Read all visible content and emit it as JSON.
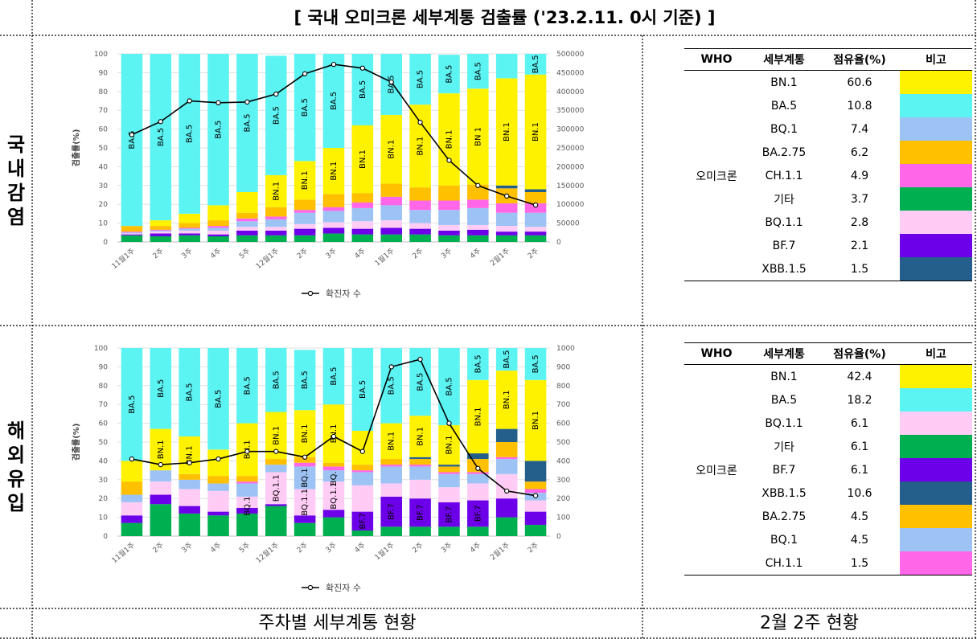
{
  "title": "[ 국내 오미크론 세부계통 검출률 ('23.2.11. 0시 기준) ]",
  "row_labels": {
    "domestic": "국내감염",
    "overseas": "해외유입"
  },
  "footer": {
    "left": "주차별 세부계통 현황",
    "right": "2월 2주 현황"
  },
  "colors": {
    "BN.1": "#FFF200",
    "BA.5": "#5CF3F3",
    "BQ.1": "#9DC3F5",
    "BA.2.75": "#FFC000",
    "CH.1.1": "#FF66E8",
    "기타": "#00B050",
    "BQ.1.1": "#FFCCF5",
    "BF.7": "#6C00E8",
    "XBB.1.5": "#245F8C",
    "line": "#000000"
  },
  "chart_data": [
    {
      "type": "bar",
      "name": "domestic",
      "ylabel": "검출률(%)",
      "ylim": [
        0,
        100
      ],
      "y2lim": [
        0,
        500000
      ],
      "yticks": [
        "0",
        "10",
        "20",
        "30",
        "40",
        "50",
        "60",
        "70",
        "80",
        "90",
        "100"
      ],
      "y2ticks": [
        "0",
        "50000",
        "100000",
        "150000",
        "200000",
        "250000",
        "300000",
        "350000",
        "400000",
        "450000",
        "500000"
      ],
      "categories": [
        "11월1주",
        "2주",
        "3주",
        "4주",
        "5주",
        "12월1주",
        "2주",
        "3주",
        "4주",
        "1월1주",
        "2주",
        "3주",
        "4주",
        "2월1주",
        "2주"
      ],
      "stack_order": [
        "기타",
        "BF.7",
        "BQ.1.1",
        "BQ.1",
        "CH.1.1",
        "BA.2.75",
        "XBB.1.5",
        "BN.1",
        "BA.5"
      ],
      "series": [
        {
          "name": "기타",
          "values": [
            3.5,
            3,
            3.5,
            3,
            3.5,
            3.5,
            3.5,
            4.5,
            4,
            4,
            4,
            3.5,
            3.5,
            3.5,
            3.5
          ]
        },
        {
          "name": "BF.7",
          "values": [
            0.5,
            1.5,
            1,
            1,
            2.5,
            2.5,
            3.5,
            3,
            3,
            3.5,
            3,
            2.5,
            3,
            2,
            2
          ]
        },
        {
          "name": "BQ.1.1",
          "values": [
            0.5,
            1,
            1.5,
            2,
            2,
            2,
            2.5,
            3,
            4,
            4,
            3,
            3,
            2.5,
            3,
            2.5
          ]
        },
        {
          "name": "BQ.1",
          "values": [
            0.5,
            0.5,
            1,
            1.5,
            3,
            4,
            6,
            6,
            7,
            8,
            7,
            8,
            9,
            7,
            7.5
          ]
        },
        {
          "name": "CH.1.1",
          "values": [
            0.5,
            0.5,
            0.5,
            1,
            1.5,
            1.5,
            1.5,
            2,
            3,
            4.5,
            5,
            5,
            4.5,
            5,
            5
          ]
        },
        {
          "name": "BA.2.75",
          "values": [
            3,
            2,
            2.5,
            3,
            3,
            5,
            5.5,
            7,
            5,
            7,
            7,
            8,
            8,
            8,
            6
          ]
        },
        {
          "name": "XBB.1.5",
          "values": [
            0,
            0,
            0,
            0,
            0,
            0,
            0,
            0,
            0,
            0,
            0,
            0,
            0,
            1.5,
            1.5
          ]
        },
        {
          "name": "BN.1",
          "values": [
            0,
            3,
            5,
            8,
            11,
            17,
            20.5,
            24.5,
            36,
            36.5,
            44,
            49,
            51,
            57,
            61
          ]
        },
        {
          "name": "BA.5",
          "values": [
            91.5,
            88.5,
            85,
            80.5,
            73.5,
            63.5,
            57,
            50,
            38,
            32.5,
            27,
            20.5,
            18.5,
            13,
            11
          ]
        },
        {
          "name": "확진자 수",
          "type": "line",
          "values": [
            285000,
            320000,
            375000,
            370000,
            372000,
            393000,
            447000,
            472000,
            462000,
            425000,
            318000,
            217000,
            150000,
            122000,
            98000
          ]
        }
      ],
      "bar_labels": {
        "BA.5": [
          "BA.5",
          "BA.5",
          "BA.5",
          "BA.5",
          "BA.5",
          "BA.5",
          "BA.5",
          "BA.5",
          "BA.5",
          "BA.5",
          "BA.5",
          "BA.5",
          "BA.5",
          "",
          "BA.5"
        ],
        "BN.1": [
          "",
          "",
          "",
          "",
          "",
          "BN.1",
          "BN.1",
          "BN.1",
          "BN.1",
          "BN.1",
          "BN.1",
          "BN.1",
          "BN 1",
          "BN.1",
          "BN.1"
        ]
      },
      "legend": "—○— 확진자 수",
      "legend_position": "bottom"
    },
    {
      "type": "bar",
      "name": "overseas",
      "ylabel": "검출률(%)",
      "ylim": [
        0,
        100
      ],
      "y2lim": [
        0,
        1000
      ],
      "yticks": [
        "0",
        "10",
        "20",
        "30",
        "40",
        "50",
        "60",
        "70",
        "80",
        "90",
        "100"
      ],
      "y2ticks": [
        "0",
        "100",
        "200",
        "300",
        "400",
        "500",
        "600",
        "700",
        "800",
        "900",
        "1000"
      ],
      "categories": [
        "11월1주",
        "2주",
        "3주",
        "4주",
        "5주",
        "12월1주",
        "2주",
        "3주",
        "4주",
        "1월1주",
        "2주",
        "3주",
        "4주",
        "2월1주",
        "2주"
      ],
      "stack_order": [
        "기타",
        "BF.7",
        "BQ.1.1",
        "BQ.1",
        "CH.1.1",
        "BA.2.75",
        "XBB.1.5",
        "BN.1",
        "BA.5"
      ],
      "series": [
        {
          "name": "기타",
          "values": [
            7,
            17,
            12,
            11,
            12,
            16,
            7,
            10,
            3,
            5,
            5,
            5,
            5,
            10,
            6
          ]
        },
        {
          "name": "BF.7",
          "values": [
            4,
            5,
            4,
            2,
            3,
            1,
            4,
            4,
            10,
            16,
            15,
            13,
            14,
            10,
            7
          ]
        },
        {
          "name": "BQ.1.1",
          "values": [
            7,
            7,
            9,
            11,
            6,
            17,
            14,
            15,
            14,
            7,
            10,
            8,
            9,
            13,
            6
          ]
        },
        {
          "name": "BQ.1",
          "values": [
            4,
            6,
            5,
            4,
            7,
            4,
            12,
            6,
            7,
            9,
            7,
            7,
            5,
            8,
            4
          ]
        },
        {
          "name": "CH.1.1",
          "values": [
            0,
            0,
            0,
            0,
            1,
            0,
            2,
            2,
            1,
            1,
            1,
            1,
            1,
            1,
            2
          ]
        },
        {
          "name": "BA.2.75",
          "values": [
            7,
            0,
            3,
            4,
            3,
            3,
            3,
            2,
            3,
            3,
            3,
            3,
            7,
            8,
            4
          ]
        },
        {
          "name": "XBB.1.5",
          "values": [
            0,
            0,
            0,
            0,
            0,
            0,
            0,
            0,
            0,
            0,
            1,
            1,
            3,
            7,
            11
          ]
        },
        {
          "name": "BN.1",
          "values": [
            11,
            22,
            20,
            14,
            28,
            25,
            25,
            31,
            18,
            19,
            22,
            21,
            39,
            31,
            43
          ]
        },
        {
          "name": "BA.5",
          "values": [
            60,
            43,
            47,
            54,
            40,
            34,
            32,
            30,
            44,
            40,
            36,
            41,
            17,
            12,
            17
          ]
        },
        {
          "name": "확진자 수",
          "type": "line",
          "values": [
            410,
            380,
            390,
            410,
            450,
            450,
            420,
            530,
            450,
            900,
            940,
            600,
            360,
            240,
            215
          ]
        }
      ],
      "bar_labels": {
        "BA.5": [
          "BA.5",
          "BA.5",
          "BA.5",
          "BA.5",
          "BA.5",
          "BA.5",
          "BA.5",
          "BA.5",
          "BA.5",
          "BA.5",
          "BA.5",
          "BA.5",
          "BA.5",
          "BA.5",
          "BA.5"
        ],
        "BN.1": [
          "",
          "BN.1",
          "BN.1",
          "",
          "BN.1",
          "BN.1",
          "BN.1",
          "BN.1",
          "",
          "BN.1",
          "BN.1",
          "BN.1",
          "BN.1",
          "BN.1",
          "BN.1"
        ],
        "BQ.1.1": [
          "",
          "",
          "",
          "",
          "BQ.1.1",
          "BQ.1.1",
          "BQ.1.1",
          "BQ.1.1",
          "",
          "",
          "",
          "",
          "",
          "",
          ""
        ],
        "BQ.1": [
          "",
          "",
          "",
          "",
          "",
          "",
          "BQ.1",
          "BQ.1",
          "",
          "",
          "",
          "",
          "",
          "",
          ""
        ],
        "BF.7": [
          "",
          "",
          "",
          "",
          "",
          "",
          "",
          "",
          "BF.7",
          "BF.7",
          "BF.7",
          "BF.7",
          "BF.7",
          "",
          ""
        ]
      },
      "legend": "—○— 확진자 수",
      "legend_position": "bottom"
    }
  ],
  "tables": {
    "domestic": {
      "headers": [
        "WHO",
        "세부계통",
        "점유율(%)",
        "비고"
      ],
      "group": "오미크론",
      "rows": [
        {
          "lineage": "BN.1",
          "share": "60.6",
          "color": "#FFF200"
        },
        {
          "lineage": "BA.5",
          "share": "10.8",
          "color": "#5CF3F3"
        },
        {
          "lineage": "BQ.1",
          "share": "7.4",
          "color": "#9DC3F5"
        },
        {
          "lineage": "BA.2.75",
          "share": "6.2",
          "color": "#FFC000"
        },
        {
          "lineage": "CH.1.1",
          "share": "4.9",
          "color": "#FF66E8"
        },
        {
          "lineage": "기타",
          "share": "3.7",
          "color": "#00B050"
        },
        {
          "lineage": "BQ.1.1",
          "share": "2.8",
          "color": "#FFCCF5"
        },
        {
          "lineage": "BF.7",
          "share": "2.1",
          "color": "#6C00E8"
        },
        {
          "lineage": "XBB.1.5",
          "share": "1.5",
          "color": "#245F8C"
        }
      ]
    },
    "overseas": {
      "headers": [
        "WHO",
        "세부계통",
        "점유율(%)",
        "비고"
      ],
      "group": "오미크론",
      "rows": [
        {
          "lineage": "BN.1",
          "share": "42.4",
          "color": "#FFF200"
        },
        {
          "lineage": "BA.5",
          "share": "18.2",
          "color": "#5CF3F3"
        },
        {
          "lineage": "BQ.1.1",
          "share": "6.1",
          "color": "#FFCCF5"
        },
        {
          "lineage": "기타",
          "share": "6.1",
          "color": "#00B050"
        },
        {
          "lineage": "BF.7",
          "share": "6.1",
          "color": "#6C00E8"
        },
        {
          "lineage": "XBB.1.5",
          "share": "10.6",
          "color": "#245F8C"
        },
        {
          "lineage": "BA.2.75",
          "share": "4.5",
          "color": "#FFC000"
        },
        {
          "lineage": "BQ.1",
          "share": "4.5",
          "color": "#9DC3F5"
        },
        {
          "lineage": "CH.1.1",
          "share": "1.5",
          "color": "#FF66E8"
        }
      ]
    }
  }
}
